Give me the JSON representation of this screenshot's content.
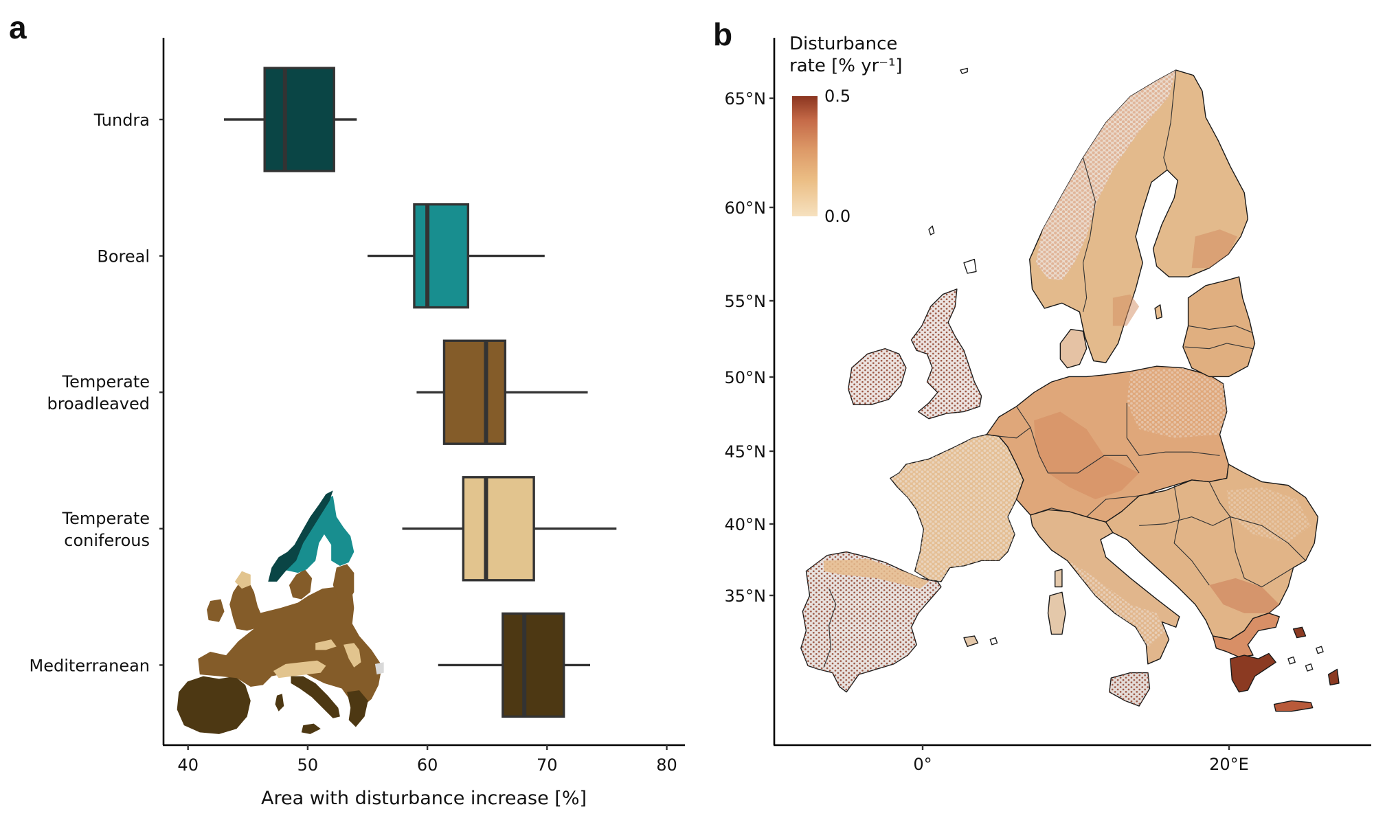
{
  "panel_a": {
    "letter": "a",
    "chart_data": {
      "type": "boxplot",
      "orientation": "horizontal",
      "title": "",
      "xlabel": "Area with disturbance increase [%]",
      "ylabel": "",
      "xlim": [
        38.5,
        82
      ],
      "xticks": [
        40,
        50,
        60,
        70,
        80
      ],
      "grid": false,
      "categories": [
        "Tundra",
        "Boreal",
        "Temperate broadleaved",
        "Temperate coniferous",
        "Mediterranean"
      ],
      "category_label_lines": [
        [
          "Tundra"
        ],
        [
          "Boreal"
        ],
        [
          "Temperate",
          "broadleaved"
        ],
        [
          "Temperate",
          "coniferous"
        ],
        [
          "Mediterranean"
        ]
      ],
      "series": [
        {
          "name": "Tundra",
          "whisker_low": 43.0,
          "q1": 46.4,
          "median": 48.1,
          "q3": 52.2,
          "whisker_high": 54.1,
          "color": "#0A4545"
        },
        {
          "name": "Boreal",
          "whisker_low": 55.0,
          "q1": 58.9,
          "median": 60.0,
          "q3": 63.4,
          "whisker_high": 69.8,
          "color": "#188E8F"
        },
        {
          "name": "Temperate broadleaved",
          "whisker_low": 59.1,
          "q1": 61.4,
          "median": 64.9,
          "q3": 66.5,
          "whisker_high": 73.4,
          "color": "#845C29"
        },
        {
          "name": "Temperate coniferous",
          "whisker_low": 57.9,
          "q1": 63.0,
          "median": 64.9,
          "q3": 68.9,
          "whisker_high": 75.8,
          "color": "#E2C48E"
        },
        {
          "name": "Mediterranean",
          "whisker_low": 60.9,
          "q1": 66.3,
          "median": 68.1,
          "q3": 71.4,
          "whisker_high": 73.6,
          "color": "#4D3813"
        }
      ],
      "annotations": [
        "Inset map of Europe coloured by biome (Tundra, Boreal, Temperate broadleaved, Temperate coniferous, Mediterranean)"
      ]
    },
    "inset_colors": {
      "tundra": "#0A4545",
      "boreal": "#188E8F",
      "broadleaved": "#845C29",
      "coniferous": "#E2C48E",
      "mediterranean": "#4D3813",
      "other": "#D9D9D9"
    }
  },
  "panel_b": {
    "letter": "b",
    "chart_data": {
      "type": "heatmap",
      "title": "",
      "subtitle": "Map of Europe showing forest disturbance rate",
      "xlabel": "",
      "ylabel": "",
      "xticks": [
        "0°",
        "20°E"
      ],
      "yticks": [
        "35°N",
        "40°N",
        "45°N",
        "50°N",
        "55°N",
        "60°N",
        "65°N"
      ],
      "legend": {
        "title_lines": [
          "Disturbance",
          "rate [% yr⁻¹]"
        ],
        "min_label": "0.0",
        "max_label": "0.5",
        "range": [
          0.0,
          0.5
        ],
        "colors": [
          "#F6E1BF",
          "#EBBE85",
          "#DD9A68",
          "#C56A48",
          "#8B3520"
        ],
        "placement": "top-left"
      },
      "regional_pattern": {
        "Scandinavia": 0.2,
        "Finland-south": 0.3,
        "Baltics": 0.2,
        "Central Europe (Germany, Czechia)": 0.25,
        "France": 0.15,
        "Iberia": 0.05,
        "British Isles": 0.03,
        "Italy": 0.15,
        "Balkans": 0.2,
        "Greece": 0.45
      }
    },
    "map_colors": {
      "base_tan": "#E3BA8C",
      "base_light": "#EAD2B6",
      "low": "#E9E2DE",
      "mid": "#D69468",
      "high": "#8B3A22",
      "dot_dark": "#8E4A35"
    }
  }
}
